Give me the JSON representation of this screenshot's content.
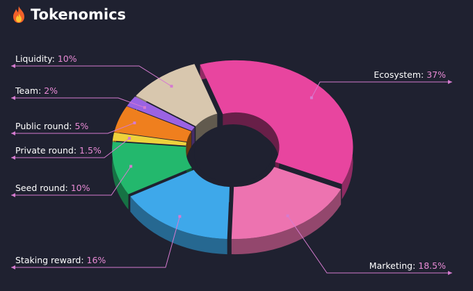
{
  "header": {
    "title": "Tokenomics",
    "icon": "fire-icon"
  },
  "chart_data": {
    "type": "pie",
    "title": "Tokenomics",
    "slices": [
      {
        "label": "Ecosystem",
        "value": 37,
        "value_label": "37%",
        "color": "#e8459f"
      },
      {
        "label": "Marketing",
        "value": 18.5,
        "value_label": "18.5%",
        "color": "#ed73b0"
      },
      {
        "label": "Staking reward",
        "value": 16,
        "value_label": "16%",
        "color": "#3ea8ea"
      },
      {
        "label": "Seed round",
        "value": 10,
        "value_label": "10%",
        "color": "#23b86d"
      },
      {
        "label": "Private round",
        "value": 1.5,
        "value_label": "1.5%",
        "color": "#eed13c"
      },
      {
        "label": "Public round",
        "value": 5,
        "value_label": "5%",
        "color": "#ef7f1e"
      },
      {
        "label": "Team",
        "value": 2,
        "value_label": "2%",
        "color": "#9b63e3"
      },
      {
        "label": "Liquidity",
        "value": 10,
        "value_label": "10%",
        "color": "#d8c7ae"
      }
    ],
    "label_color": "#e98bd6",
    "leader_color": "#d67bd0",
    "background": "#1f2130"
  }
}
